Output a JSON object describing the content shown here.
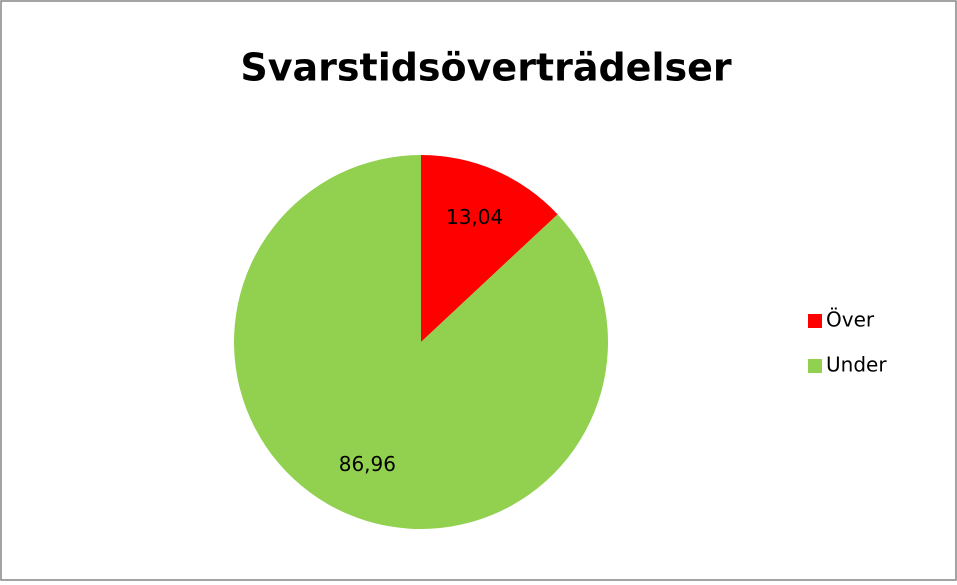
{
  "chart_data": {
    "type": "pie",
    "title": "Svarstidsöverträdelser",
    "categories": [
      "Över",
      "Under"
    ],
    "values": [
      13.04,
      86.96
    ],
    "value_labels": [
      "13,04",
      "86,96"
    ],
    "colors": [
      "#ff0000",
      "#92d050"
    ],
    "legend": "right"
  }
}
